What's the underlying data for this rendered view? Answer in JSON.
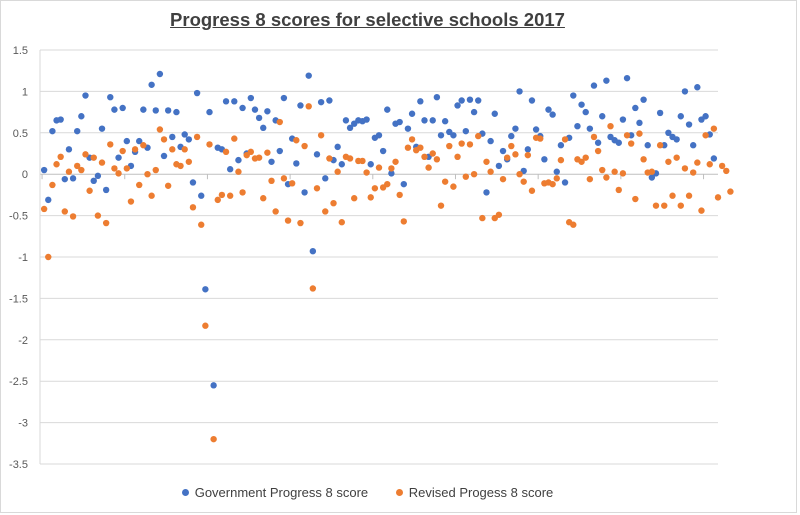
{
  "chart_data": {
    "type": "scatter",
    "title": "Progress 8 scores for selective schools 2017",
    "xlabel": "",
    "ylabel": "",
    "ylim": [
      -3.5,
      1.5
    ],
    "yticks": [
      "1.5",
      "1",
      "0.5",
      "0",
      "-0.5",
      "-1",
      "-1.5",
      "-2",
      "-2.5",
      "-3",
      "-3.5"
    ],
    "grid": "horizontal",
    "legend_position": "bottom",
    "series": [
      {
        "name": "Government Progress 8 score",
        "color": "#4472c4",
        "values": [
          0.05,
          -0.31,
          0.52,
          0.65,
          0.66,
          -0.06,
          0.3,
          -0.05,
          0.52,
          0.7,
          0.95,
          0.2,
          -0.08,
          -0.02,
          0.55,
          -0.19,
          0.93,
          0.78,
          0.2,
          0.8,
          0.4,
          0.1,
          0.27,
          0.4,
          0.78,
          0.32,
          1.08,
          0.77,
          1.21,
          0.22,
          0.77,
          0.45,
          0.75,
          0.33,
          0.48,
          0.42,
          -0.1,
          0.98,
          -0.26,
          -1.39,
          0.75,
          -2.55,
          0.32,
          0.3,
          0.88,
          0.06,
          0.88,
          0.17,
          0.8,
          0.25,
          0.92,
          0.78,
          0.68,
          0.56,
          0.76,
          0.15,
          0.65,
          0.28,
          0.92,
          -0.12,
          0.43,
          0.13,
          0.83,
          -0.22,
          1.19,
          -0.93,
          0.24,
          0.87,
          -0.05,
          0.89,
          0.17,
          0.33,
          0.12,
          0.65,
          0.56,
          0.61,
          0.65,
          0.64,
          0.66,
          0.12,
          0.44,
          0.47,
          0.28,
          0.78,
          0.01,
          0.61,
          0.63,
          -0.12,
          0.55,
          0.73,
          0.33,
          0.88,
          0.65,
          0.21,
          0.65,
          0.93,
          0.47,
          0.64,
          0.51,
          0.47,
          0.83,
          0.89,
          0.52,
          0.9,
          0.75,
          0.89,
          0.49,
          -0.22,
          0.4,
          0.73,
          0.1,
          0.28,
          0.18,
          0.46,
          0.55,
          1.0,
          0.04,
          0.3,
          0.89,
          0.54,
          0.46,
          0.18,
          0.78,
          0.72,
          0.03,
          0.35,
          -0.1,
          0.44,
          0.95,
          0.58,
          0.84,
          0.75,
          0.55,
          1.07,
          0.38,
          0.7,
          1.13,
          0.45,
          0.41,
          0.38,
          0.66,
          1.16,
          0.47,
          0.8,
          0.62,
          0.9,
          0.35,
          -0.04,
          0.01,
          0.74,
          0.35,
          0.5,
          0.45,
          0.42,
          0.7,
          1.0,
          0.6,
          0.35,
          1.05,
          0.66,
          0.7,
          0.48,
          0.19
        ]
      },
      {
        "name": "Revised Progess 8 score",
        "color": "#ed7d31",
        "values": [
          -0.42,
          -1.0,
          -0.13,
          0.12,
          0.21,
          -0.45,
          0.03,
          -0.51,
          0.1,
          0.05,
          0.24,
          -0.2,
          0.2,
          -0.5,
          0.14,
          -0.59,
          0.36,
          0.07,
          0.01,
          0.28,
          0.07,
          -0.33,
          0.3,
          -0.13,
          0.35,
          0.0,
          -0.26,
          0.05,
          0.54,
          0.42,
          -0.14,
          0.3,
          0.12,
          0.1,
          0.3,
          0.15,
          -0.4,
          0.45,
          -0.61,
          -1.83,
          0.36,
          -3.2,
          -0.31,
          -0.25,
          0.27,
          -0.26,
          0.43,
          0.03,
          -0.22,
          0.23,
          0.27,
          0.19,
          0.2,
          -0.29,
          0.26,
          -0.08,
          -0.45,
          0.63,
          -0.05,
          -0.56,
          -0.11,
          0.41,
          -0.59,
          0.34,
          0.82,
          -1.38,
          -0.17,
          0.47,
          -0.45,
          0.19,
          -0.35,
          0.03,
          -0.58,
          0.21,
          0.19,
          -0.29,
          0.16,
          0.16,
          0.02,
          -0.28,
          -0.17,
          0.08,
          -0.16,
          -0.12,
          0.07,
          0.15,
          -0.25,
          -0.57,
          0.32,
          0.42,
          0.29,
          0.32,
          0.21,
          0.08,
          0.25,
          0.18,
          -0.38,
          -0.09,
          0.34,
          -0.15,
          0.21,
          0.37,
          -0.03,
          0.36,
          0.0,
          0.46,
          -0.53,
          0.15,
          0.03,
          -0.53,
          -0.49,
          -0.06,
          0.2,
          0.34,
          0.24,
          0.0,
          -0.09,
          0.23,
          -0.2,
          0.44,
          0.43,
          -0.11,
          -0.1,
          -0.12,
          -0.05,
          0.17,
          0.42,
          -0.58,
          -0.61,
          0.18,
          0.15,
          0.2,
          -0.06,
          0.45,
          0.28,
          0.05,
          -0.04,
          0.58,
          0.03,
          -0.19,
          0.01,
          0.47,
          0.37,
          -0.3,
          0.49,
          0.18,
          0.02,
          0.03,
          -0.38,
          0.35,
          -0.38,
          0.15,
          -0.26,
          0.2,
          -0.38,
          0.07,
          -0.26,
          0.02,
          0.14,
          -0.44,
          0.47,
          0.12,
          0.55,
          -0.28,
          0.1,
          0.04,
          -0.21
        ]
      }
    ]
  }
}
